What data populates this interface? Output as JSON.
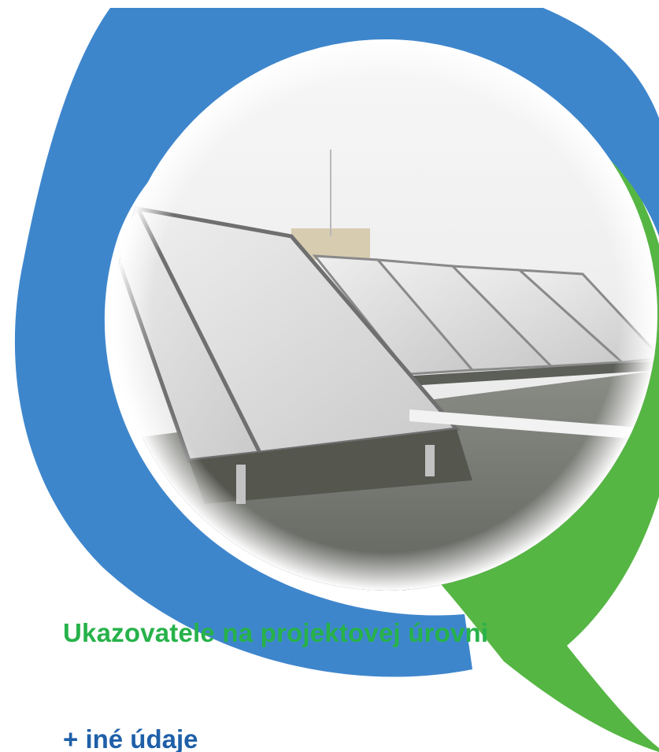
{
  "cover": {
    "title": "Ukazovatele na projektovej úrovni",
    "subtitle": "+ iné údaje",
    "photo_subject": "solar-thermal-collectors-on-roof"
  },
  "colors": {
    "blue_ring": "#3e86cc",
    "green_ring": "#55b643",
    "title_green": "#27b24a",
    "subtitle_blue": "#1f5fa8",
    "sky": "#eeeeee",
    "panel": "#dcdcdc",
    "roof": "#6e706a"
  }
}
